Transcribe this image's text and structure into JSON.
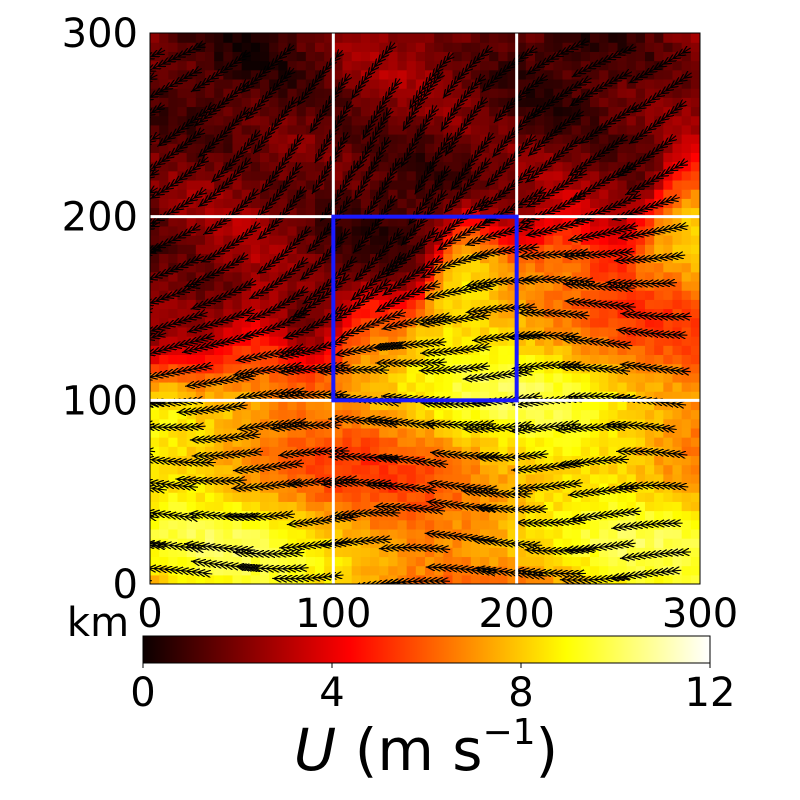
{
  "chart_data": {
    "type": "heatmap",
    "title": "",
    "x_axis": {
      "range": [
        0,
        300
      ],
      "ticks": [
        "0",
        "100",
        "200",
        "300"
      ],
      "unit_label": "km"
    },
    "y_axis": {
      "range": [
        0,
        300
      ],
      "ticks": [
        "0",
        "100",
        "200",
        "300"
      ]
    },
    "grid": {
      "visible": true,
      "color": "#ffffff",
      "lines_x": [
        100,
        200
      ],
      "lines_y": [
        100,
        200
      ]
    },
    "highlight_box": {
      "x": [
        100,
        200
      ],
      "y": [
        100,
        200
      ],
      "color": "#1a1aff"
    },
    "overlay": "streamlines",
    "colormap": "hot",
    "colorbar": {
      "range": [
        0,
        12
      ],
      "ticks": [
        "0",
        "4",
        "8",
        "12"
      ],
      "label_symbol": "U",
      "label_unit": "(m s",
      "label_exponent": "−1",
      "label_close": ")",
      "placement": "bottom"
    },
    "field_description": {
      "dividing_line": "diagonal from (0,110) to (300,220)",
      "region_above_line": "low speed, about 1-3 m s-1 (dark red)",
      "region_below_line": "high speed, about 7-10 m s-1 (yellow)",
      "transition_band": "about 4-6 m s-1 (red/orange)"
    }
  }
}
